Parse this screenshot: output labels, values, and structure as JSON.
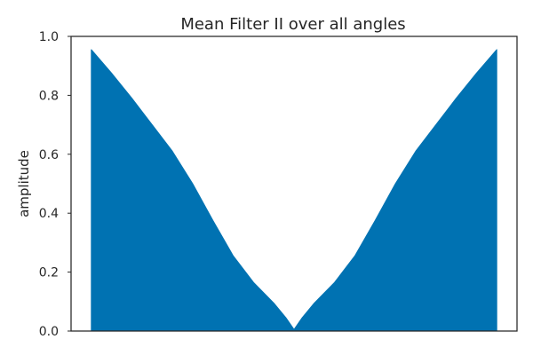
{
  "chart_data": {
    "type": "area",
    "title": "Mean Filter II over all angles",
    "xlabel": "",
    "ylabel": "amplitude",
    "ylim": [
      0,
      1.0
    ],
    "xlim": [
      -0.05,
      1.05
    ],
    "yticks": [
      "0.0",
      "0.2",
      "0.4",
      "0.6",
      "0.8",
      "1.0"
    ],
    "grid": false,
    "x": [
      0.0,
      0.05,
      0.1,
      0.15,
      0.2,
      0.25,
      0.3,
      0.35,
      0.4,
      0.45,
      0.48,
      0.5,
      0.52,
      0.55,
      0.6,
      0.65,
      0.7,
      0.75,
      0.8,
      0.85,
      0.9,
      0.95,
      1.0
    ],
    "series": [
      {
        "values": [
          0.955,
          0.875,
          0.79,
          0.7,
          0.61,
          0.5,
          0.375,
          0.255,
          0.165,
          0.095,
          0.045,
          0.005,
          0.045,
          0.095,
          0.165,
          0.255,
          0.375,
          0.5,
          0.61,
          0.7,
          0.79,
          0.875,
          0.955
        ],
        "color": "#0072b2"
      }
    ]
  }
}
